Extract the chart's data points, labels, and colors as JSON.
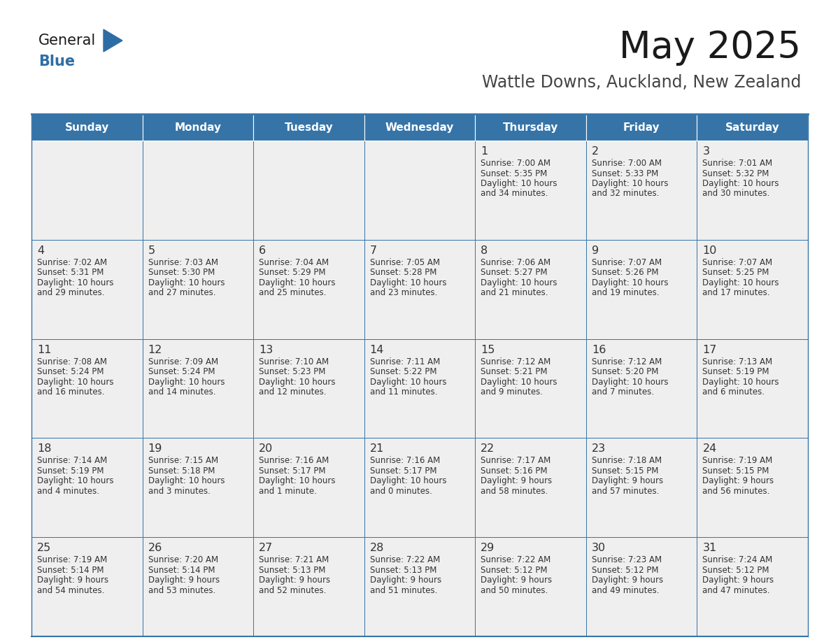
{
  "title": "May 2025",
  "subtitle": "Wattle Downs, Auckland, New Zealand",
  "days_of_week": [
    "Sunday",
    "Monday",
    "Tuesday",
    "Wednesday",
    "Thursday",
    "Friday",
    "Saturday"
  ],
  "header_bg": "#3674a8",
  "header_text": "#FFFFFF",
  "cell_bg": "#EFEFEF",
  "cell_bg_white": "#FFFFFF",
  "border_color": "#3674a8",
  "day_number_color": "#333333",
  "text_color": "#333333",
  "title_color": "#1a1a1a",
  "subtitle_color": "#444444",
  "logo_color_general": "#1a1a1a",
  "logo_color_blue": "#2E6DA4",
  "calendar_data": [
    [
      {
        "day": "",
        "sunrise": "",
        "sunset": "",
        "daylight": ""
      },
      {
        "day": "",
        "sunrise": "",
        "sunset": "",
        "daylight": ""
      },
      {
        "day": "",
        "sunrise": "",
        "sunset": "",
        "daylight": ""
      },
      {
        "day": "",
        "sunrise": "",
        "sunset": "",
        "daylight": ""
      },
      {
        "day": "1",
        "sunrise": "7:00 AM",
        "sunset": "5:35 PM",
        "daylight_line1": "Daylight: 10 hours",
        "daylight_line2": "and 34 minutes."
      },
      {
        "day": "2",
        "sunrise": "7:00 AM",
        "sunset": "5:33 PM",
        "daylight_line1": "Daylight: 10 hours",
        "daylight_line2": "and 32 minutes."
      },
      {
        "day": "3",
        "sunrise": "7:01 AM",
        "sunset": "5:32 PM",
        "daylight_line1": "Daylight: 10 hours",
        "daylight_line2": "and 30 minutes."
      }
    ],
    [
      {
        "day": "4",
        "sunrise": "7:02 AM",
        "sunset": "5:31 PM",
        "daylight_line1": "Daylight: 10 hours",
        "daylight_line2": "and 29 minutes."
      },
      {
        "day": "5",
        "sunrise": "7:03 AM",
        "sunset": "5:30 PM",
        "daylight_line1": "Daylight: 10 hours",
        "daylight_line2": "and 27 minutes."
      },
      {
        "day": "6",
        "sunrise": "7:04 AM",
        "sunset": "5:29 PM",
        "daylight_line1": "Daylight: 10 hours",
        "daylight_line2": "and 25 minutes."
      },
      {
        "day": "7",
        "sunrise": "7:05 AM",
        "sunset": "5:28 PM",
        "daylight_line1": "Daylight: 10 hours",
        "daylight_line2": "and 23 minutes."
      },
      {
        "day": "8",
        "sunrise": "7:06 AM",
        "sunset": "5:27 PM",
        "daylight_line1": "Daylight: 10 hours",
        "daylight_line2": "and 21 minutes."
      },
      {
        "day": "9",
        "sunrise": "7:07 AM",
        "sunset": "5:26 PM",
        "daylight_line1": "Daylight: 10 hours",
        "daylight_line2": "and 19 minutes."
      },
      {
        "day": "10",
        "sunrise": "7:07 AM",
        "sunset": "5:25 PM",
        "daylight_line1": "Daylight: 10 hours",
        "daylight_line2": "and 17 minutes."
      }
    ],
    [
      {
        "day": "11",
        "sunrise": "7:08 AM",
        "sunset": "5:24 PM",
        "daylight_line1": "Daylight: 10 hours",
        "daylight_line2": "and 16 minutes."
      },
      {
        "day": "12",
        "sunrise": "7:09 AM",
        "sunset": "5:24 PM",
        "daylight_line1": "Daylight: 10 hours",
        "daylight_line2": "and 14 minutes."
      },
      {
        "day": "13",
        "sunrise": "7:10 AM",
        "sunset": "5:23 PM",
        "daylight_line1": "Daylight: 10 hours",
        "daylight_line2": "and 12 minutes."
      },
      {
        "day": "14",
        "sunrise": "7:11 AM",
        "sunset": "5:22 PM",
        "daylight_line1": "Daylight: 10 hours",
        "daylight_line2": "and 11 minutes."
      },
      {
        "day": "15",
        "sunrise": "7:12 AM",
        "sunset": "5:21 PM",
        "daylight_line1": "Daylight: 10 hours",
        "daylight_line2": "and 9 minutes."
      },
      {
        "day": "16",
        "sunrise": "7:12 AM",
        "sunset": "5:20 PM",
        "daylight_line1": "Daylight: 10 hours",
        "daylight_line2": "and 7 minutes."
      },
      {
        "day": "17",
        "sunrise": "7:13 AM",
        "sunset": "5:19 PM",
        "daylight_line1": "Daylight: 10 hours",
        "daylight_line2": "and 6 minutes."
      }
    ],
    [
      {
        "day": "18",
        "sunrise": "7:14 AM",
        "sunset": "5:19 PM",
        "daylight_line1": "Daylight: 10 hours",
        "daylight_line2": "and 4 minutes."
      },
      {
        "day": "19",
        "sunrise": "7:15 AM",
        "sunset": "5:18 PM",
        "daylight_line1": "Daylight: 10 hours",
        "daylight_line2": "and 3 minutes."
      },
      {
        "day": "20",
        "sunrise": "7:16 AM",
        "sunset": "5:17 PM",
        "daylight_line1": "Daylight: 10 hours",
        "daylight_line2": "and 1 minute."
      },
      {
        "day": "21",
        "sunrise": "7:16 AM",
        "sunset": "5:17 PM",
        "daylight_line1": "Daylight: 10 hours",
        "daylight_line2": "and 0 minutes."
      },
      {
        "day": "22",
        "sunrise": "7:17 AM",
        "sunset": "5:16 PM",
        "daylight_line1": "Daylight: 9 hours",
        "daylight_line2": "and 58 minutes."
      },
      {
        "day": "23",
        "sunrise": "7:18 AM",
        "sunset": "5:15 PM",
        "daylight_line1": "Daylight: 9 hours",
        "daylight_line2": "and 57 minutes."
      },
      {
        "day": "24",
        "sunrise": "7:19 AM",
        "sunset": "5:15 PM",
        "daylight_line1": "Daylight: 9 hours",
        "daylight_line2": "and 56 minutes."
      }
    ],
    [
      {
        "day": "25",
        "sunrise": "7:19 AM",
        "sunset": "5:14 PM",
        "daylight_line1": "Daylight: 9 hours",
        "daylight_line2": "and 54 minutes."
      },
      {
        "day": "26",
        "sunrise": "7:20 AM",
        "sunset": "5:14 PM",
        "daylight_line1": "Daylight: 9 hours",
        "daylight_line2": "and 53 minutes."
      },
      {
        "day": "27",
        "sunrise": "7:21 AM",
        "sunset": "5:13 PM",
        "daylight_line1": "Daylight: 9 hours",
        "daylight_line2": "and 52 minutes."
      },
      {
        "day": "28",
        "sunrise": "7:22 AM",
        "sunset": "5:13 PM",
        "daylight_line1": "Daylight: 9 hours",
        "daylight_line2": "and 51 minutes."
      },
      {
        "day": "29",
        "sunrise": "7:22 AM",
        "sunset": "5:12 PM",
        "daylight_line1": "Daylight: 9 hours",
        "daylight_line2": "and 50 minutes."
      },
      {
        "day": "30",
        "sunrise": "7:23 AM",
        "sunset": "5:12 PM",
        "daylight_line1": "Daylight: 9 hours",
        "daylight_line2": "and 49 minutes."
      },
      {
        "day": "31",
        "sunrise": "7:24 AM",
        "sunset": "5:12 PM",
        "daylight_line1": "Daylight: 9 hours",
        "daylight_line2": "and 47 minutes."
      }
    ]
  ]
}
